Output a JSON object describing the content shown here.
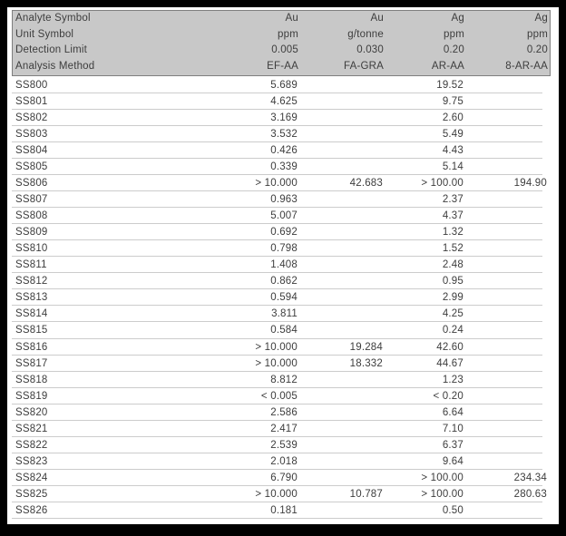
{
  "colors": {
    "frame": "#000000",
    "page_bg": "#ffffff",
    "header_bg": "#c8c8c8",
    "header_border": "#7f7f7f",
    "row_line": "#cccccc",
    "text": "#3d3d3d"
  },
  "header_rows": [
    {
      "label": "Analyte Symbol",
      "values": [
        "Au",
        "Au",
        "Ag",
        "Ag"
      ]
    },
    {
      "label": "Unit Symbol",
      "values": [
        "ppm",
        "g/tonne",
        "ppm",
        "ppm"
      ]
    },
    {
      "label": "Detection Limit",
      "values": [
        "0.005",
        "0.030",
        "0.20",
        "0.20"
      ]
    },
    {
      "label": "Analysis Method",
      "values": [
        "EF-AA",
        "FA-GRA",
        "AR-AA",
        "8-AR-AA"
      ]
    }
  ],
  "samples": [
    {
      "id": "SS800",
      "values": [
        "5.689",
        "",
        "19.52",
        ""
      ]
    },
    {
      "id": "SS801",
      "values": [
        "4.625",
        "",
        "9.75",
        ""
      ]
    },
    {
      "id": "SS802",
      "values": [
        "3.169",
        "",
        "2.60",
        ""
      ]
    },
    {
      "id": "SS803",
      "values": [
        "3.532",
        "",
        "5.49",
        ""
      ]
    },
    {
      "id": "SS804",
      "values": [
        "0.426",
        "",
        "4.43",
        ""
      ]
    },
    {
      "id": "SS805",
      "values": [
        "0.339",
        "",
        "5.14",
        ""
      ]
    },
    {
      "id": "SS806",
      "values": [
        "> 10.000",
        "42.683",
        "> 100.00",
        "194.90"
      ]
    },
    {
      "id": "SS807",
      "values": [
        "0.963",
        "",
        "2.37",
        ""
      ]
    },
    {
      "id": "SS808",
      "values": [
        "5.007",
        "",
        "4.37",
        ""
      ]
    },
    {
      "id": "SS809",
      "values": [
        "0.692",
        "",
        "1.32",
        ""
      ]
    },
    {
      "id": "SS810",
      "values": [
        "0.798",
        "",
        "1.52",
        ""
      ]
    },
    {
      "id": "SS811",
      "values": [
        "1.408",
        "",
        "2.48",
        ""
      ]
    },
    {
      "id": "SS812",
      "values": [
        "0.862",
        "",
        "0.95",
        ""
      ]
    },
    {
      "id": "SS813",
      "values": [
        "0.594",
        "",
        "2.99",
        ""
      ]
    },
    {
      "id": "SS814",
      "values": [
        "3.811",
        "",
        "4.25",
        ""
      ]
    },
    {
      "id": "SS815",
      "values": [
        "0.584",
        "",
        "0.24",
        ""
      ]
    },
    {
      "id": "SS816",
      "values": [
        "> 10.000",
        "19.284",
        "42.60",
        ""
      ]
    },
    {
      "id": "SS817",
      "values": [
        "> 10.000",
        "18.332",
        "44.67",
        ""
      ]
    },
    {
      "id": "SS818",
      "values": [
        "8.812",
        "",
        "1.23",
        ""
      ]
    },
    {
      "id": "SS819",
      "values": [
        "< 0.005",
        "",
        "< 0.20",
        ""
      ]
    },
    {
      "id": "SS820",
      "values": [
        "2.586",
        "",
        "6.64",
        ""
      ]
    },
    {
      "id": "SS821",
      "values": [
        "2.417",
        "",
        "7.10",
        ""
      ]
    },
    {
      "id": "SS822",
      "values": [
        "2.539",
        "",
        "6.37",
        ""
      ]
    },
    {
      "id": "SS823",
      "values": [
        "2.018",
        "",
        "9.64",
        ""
      ]
    },
    {
      "id": "SS824",
      "values": [
        "6.790",
        "",
        "> 100.00",
        "234.34"
      ]
    },
    {
      "id": "SS825",
      "values": [
        "> 10.000",
        "10.787",
        "> 100.00",
        "280.63"
      ]
    },
    {
      "id": "SS826",
      "values": [
        "0.181",
        "",
        "0.50",
        ""
      ]
    }
  ]
}
